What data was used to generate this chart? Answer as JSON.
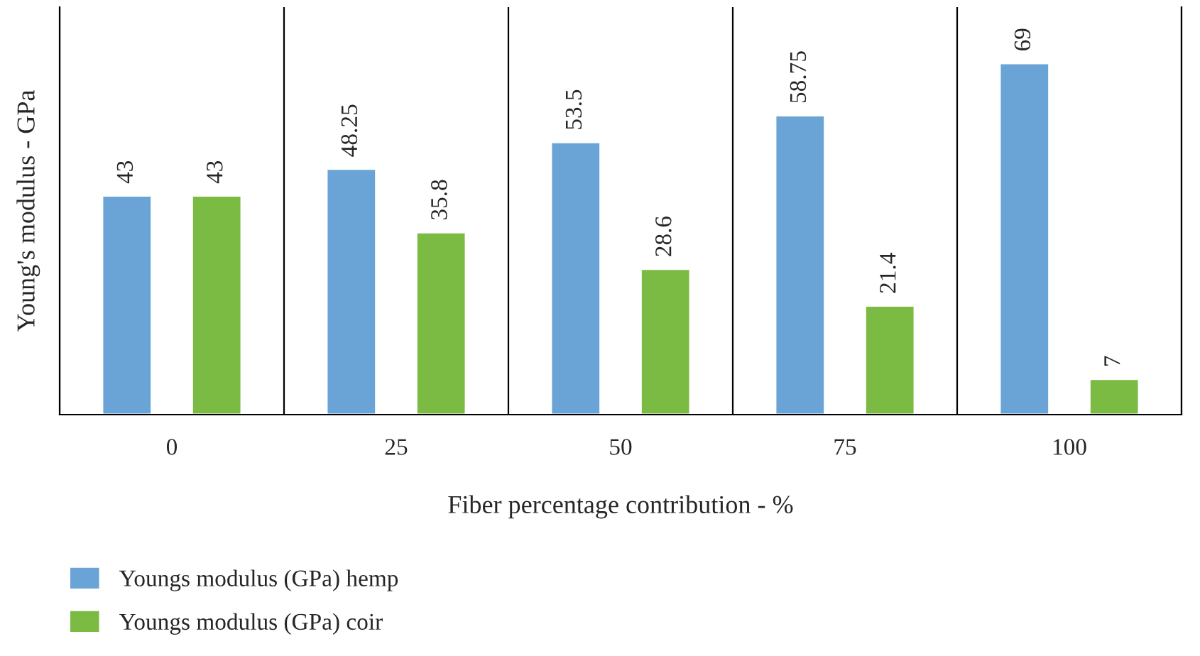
{
  "chart_data": {
    "type": "bar",
    "xlabel": "Fiber percentage contribution - %",
    "ylabel": "Young's modulus - GPa",
    "categories": [
      "0",
      "25",
      "50",
      "75",
      "100"
    ],
    "series": [
      {
        "name": "Youngs modulus (GPa) hemp",
        "color": "#6aa3d5",
        "values": [
          43,
          48.25,
          53.5,
          58.75,
          69
        ]
      },
      {
        "name": "Youngs modulus (GPa) coir",
        "color": "#7bba43",
        "values": [
          43,
          35.8,
          28.6,
          21.4,
          7
        ]
      }
    ],
    "data_labels": true,
    "grid": "x",
    "legend": "bottom left"
  }
}
